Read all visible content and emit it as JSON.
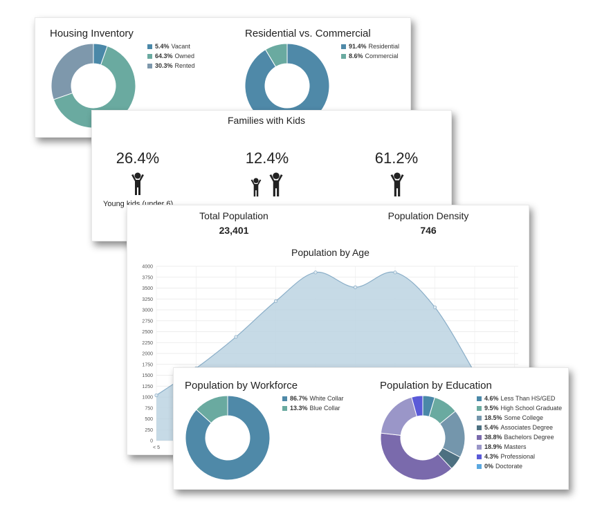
{
  "housing": {
    "title": "Housing Inventory",
    "legend": [
      {
        "pct": "5.4%",
        "label": "Vacant",
        "color": "#4a88a8"
      },
      {
        "pct": "64.3%",
        "label": "Owned",
        "color": "#6aaaa0"
      },
      {
        "pct": "30.3%",
        "label": "Rented",
        "color": "#7e98ac"
      }
    ]
  },
  "residential": {
    "title": "Residential vs. Commercial",
    "legend": [
      {
        "pct": "91.4%",
        "label": "Residential",
        "color": "#4f89a8"
      },
      {
        "pct": "8.6%",
        "label": "Commercial",
        "color": "#6aaaa0"
      }
    ]
  },
  "families": {
    "title": "Families with Kids",
    "items": [
      {
        "pct": "26.4%",
        "label": "Young kids (under 6)"
      },
      {
        "pct": "12.4%",
        "label": ""
      },
      {
        "pct": "61.2%",
        "label": ""
      }
    ]
  },
  "population": {
    "total_label": "Total Population",
    "total_value": "23,401",
    "density_label": "Population Density",
    "density_value": "746"
  },
  "age": {
    "title": "Population by Age",
    "y_ticks": [
      "4000",
      "3750",
      "3500",
      "3250",
      "3000",
      "2750",
      "2500",
      "2250",
      "2000",
      "1750",
      "1500",
      "1250",
      "1000",
      "750",
      "500",
      "250",
      "0"
    ],
    "first_x_tick": "< 5"
  },
  "workforce": {
    "title": "Population by Workforce",
    "legend": [
      {
        "pct": "86.7%",
        "label": "White Collar",
        "color": "#4f89a8"
      },
      {
        "pct": "13.3%",
        "label": "Blue Collar",
        "color": "#6aaaa0"
      }
    ]
  },
  "education": {
    "title": "Population by Education",
    "legend": [
      {
        "pct": "4.6%",
        "label": "Less Than HS/GED",
        "color": "#4a88a8"
      },
      {
        "pct": "9.5%",
        "label": "High School Graduate",
        "color": "#6aaaa0"
      },
      {
        "pct": "18.5%",
        "label": "Some College",
        "color": "#7496ac"
      },
      {
        "pct": "5.4%",
        "label": "Associates Degree",
        "color": "#4d7081"
      },
      {
        "pct": "38.8%",
        "label": "Bachelors Degree",
        "color": "#7a6aac"
      },
      {
        "pct": "18.9%",
        "label": "Masters",
        "color": "#9a96c8"
      },
      {
        "pct": "4.3%",
        "label": "Professional",
        "color": "#5a5ad8"
      },
      {
        "pct": "0%",
        "label": "Doctorate",
        "color": "#5aa8e0"
      }
    ]
  },
  "chart_data": [
    {
      "type": "pie",
      "title": "Housing Inventory",
      "categories": [
        "Vacant",
        "Owned",
        "Rented"
      ],
      "values": [
        5.4,
        64.3,
        30.3
      ],
      "colors": [
        "#4a88a8",
        "#6aaaa0",
        "#7e98ac"
      ]
    },
    {
      "type": "pie",
      "title": "Residential vs. Commercial",
      "categories": [
        "Residential",
        "Commercial"
      ],
      "values": [
        91.4,
        8.6
      ],
      "colors": [
        "#4f89a8",
        "#6aaaa0"
      ]
    },
    {
      "type": "area",
      "title": "Population by Age",
      "ylim": [
        0,
        4000
      ],
      "points": [
        1040,
        1660,
        2380,
        3200,
        3860,
        3520,
        3860,
        3060,
        1560
      ],
      "color": "#bcd3e2",
      "line_color": "#8aaec8",
      "grid": true
    },
    {
      "type": "pie",
      "title": "Population by Workforce",
      "categories": [
        "White Collar",
        "Blue Collar"
      ],
      "values": [
        86.7,
        13.3
      ],
      "colors": [
        "#4f89a8",
        "#6aaaa0"
      ]
    },
    {
      "type": "pie",
      "title": "Population by Education",
      "categories": [
        "Less Than HS/GED",
        "High School Graduate",
        "Some College",
        "Associates Degree",
        "Bachelors Degree",
        "Masters",
        "Professional",
        "Doctorate"
      ],
      "values": [
        4.6,
        9.5,
        18.5,
        5.4,
        38.8,
        18.9,
        4.3,
        0
      ],
      "colors": [
        "#4a88a8",
        "#6aaaa0",
        "#7496ac",
        "#4d7081",
        "#7a6aac",
        "#9a96c8",
        "#5a5ad8",
        "#5aa8e0"
      ]
    }
  ]
}
